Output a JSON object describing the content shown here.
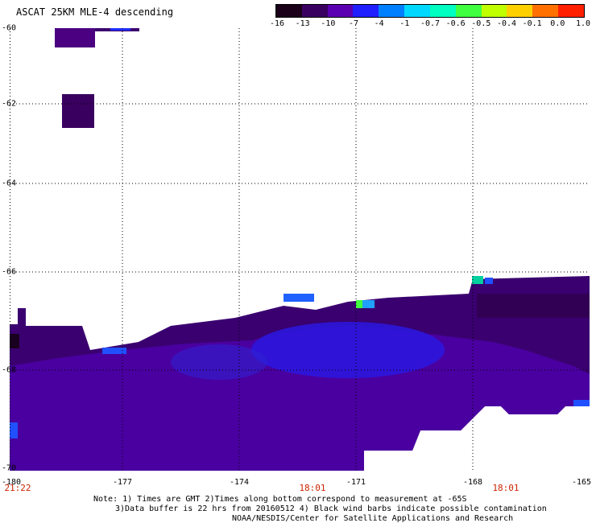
{
  "title": "ASCAT 25KM MLE-4 descending",
  "colorbar": {
    "labels": [
      "-16",
      "-13",
      "-10",
      "-7",
      "-4",
      "-1",
      "-0.7",
      "-0.6",
      "-0.5",
      "-0.4",
      "-0.1",
      "0.0",
      "1.0"
    ],
    "colors": [
      "#1a0018",
      "#3a0060",
      "#5a00b0",
      "#2020ff",
      "#0080ff",
      "#00d8ff",
      "#00ffc0",
      "#40ff40",
      "#c0ff00",
      "#ffd000",
      "#ff7000",
      "#ff2000"
    ]
  },
  "axes": {
    "lat_ticks": [
      "-60",
      "-62",
      "-64",
      "-66",
      "-68",
      "-70"
    ],
    "lon_ticks": [
      "-180",
      "-177",
      "-174",
      "-171",
      "-168",
      "-165"
    ]
  },
  "times": [
    "21:22",
    "18:01",
    "18:01"
  ],
  "notes": [
    "Note: 1) Times are GMT 2)Times along bottom correspond to measurement at -65S",
    "3)Data buffer is 22 hrs from 20160512 4) Black wind barbs indicate possible contamination",
    "NOAA/NESDIS/Center for Satellite Applications and Research"
  ]
}
